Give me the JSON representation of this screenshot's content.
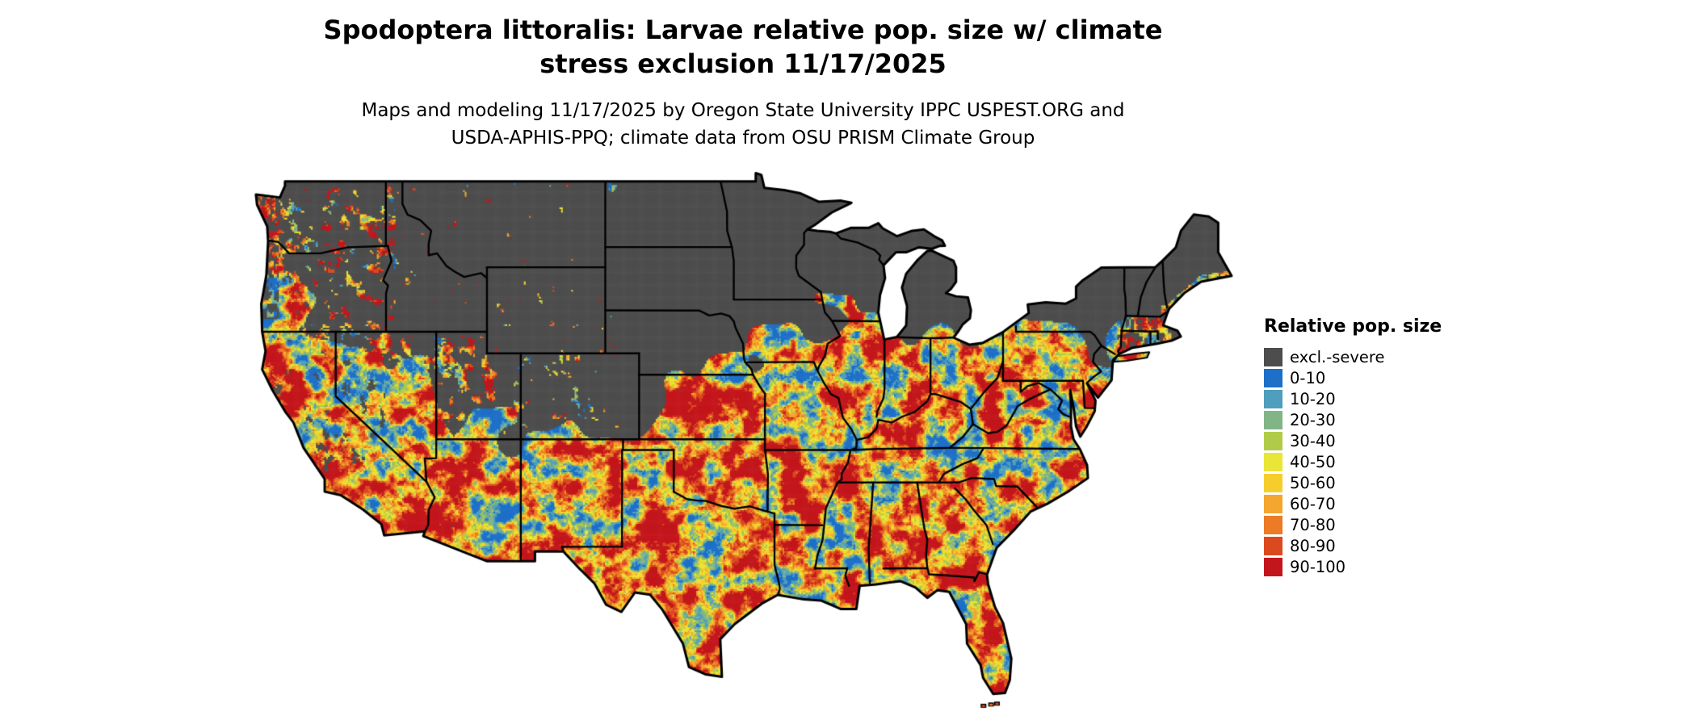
{
  "page": {
    "background": "#FFFFFF"
  },
  "title": {
    "line1": "Spodoptera littoralis: Larvae relative pop. size w/ climate",
    "line2": "stress exclusion 11/17/2025"
  },
  "subtitle": {
    "line1": "Maps and modeling 11/17/2025 by Oregon State University IPPC USPEST.ORG and",
    "line2": "USDA-APHIS-PPQ; climate data from OSU PRISM Climate Group"
  },
  "legend": {
    "title": "Relative pop. size",
    "items": [
      {
        "label": "excl.-severe",
        "color": "#4D4D4D"
      },
      {
        "label": "0-10",
        "color": "#1D6FC8"
      },
      {
        "label": "10-20",
        "color": "#4F9EBE"
      },
      {
        "label": "20-30",
        "color": "#82B586"
      },
      {
        "label": "30-40",
        "color": "#B1CB48"
      },
      {
        "label": "40-50",
        "color": "#E9E637"
      },
      {
        "label": "50-60",
        "color": "#F6CE2B"
      },
      {
        "label": "60-70",
        "color": "#F4A62E"
      },
      {
        "label": "70-80",
        "color": "#EB7B24"
      },
      {
        "label": "80-90",
        "color": "#DB491F"
      },
      {
        "label": "90-100",
        "color": "#C3161C"
      }
    ]
  },
  "map": {
    "excluded_label": "excl.-severe",
    "excluded_color": "#4D4D4D",
    "border_color": "#000000"
  }
}
